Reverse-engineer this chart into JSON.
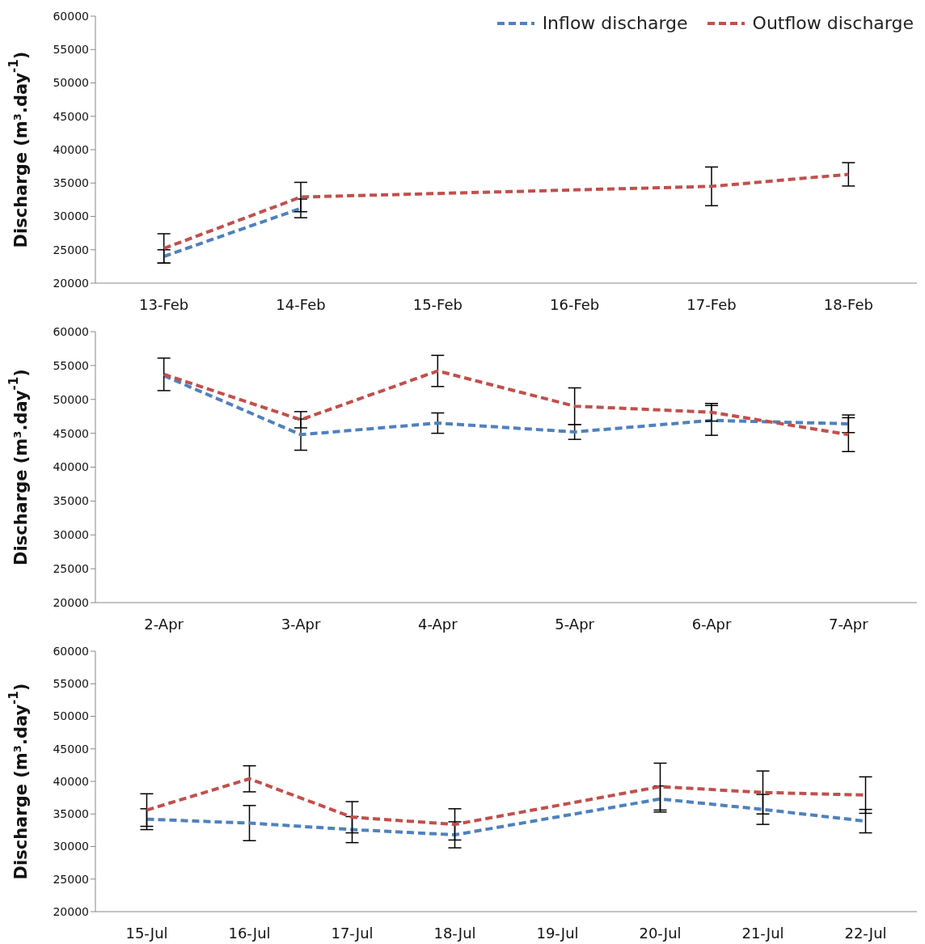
{
  "chart_data": [
    {
      "type": "line",
      "ylabel": "Discharge (m³.day$^{-1}$)",
      "categories": [
        "13-Feb",
        "14-Feb",
        "15-Feb",
        "16-Feb",
        "17-Feb",
        "18-Feb"
      ],
      "ylim": [
        20000,
        60000
      ],
      "yticks": [
        20000,
        25000,
        30000,
        35000,
        40000,
        45000,
        50000,
        55000,
        60000
      ],
      "grid": false,
      "legend": "top right",
      "marker": "none",
      "line_style": "dashed",
      "series": [
        {
          "name": "Inflow discharge",
          "color": "#4f81bd",
          "values": [
            24000,
            31200,
            null,
            null,
            null,
            null
          ],
          "errors": [
            1000,
            1400,
            null,
            null,
            null,
            null
          ]
        },
        {
          "name": "Outflow discharge",
          "color": "#c0504d",
          "values": [
            25200,
            32900,
            null,
            null,
            34500,
            36300
          ],
          "errors": [
            2200,
            2200,
            null,
            null,
            2900,
            1750
          ]
        }
      ]
    },
    {
      "type": "line",
      "ylabel": "Discharge (m³.day$^{-1}$)",
      "categories": [
        "2-Apr",
        "3-Apr",
        "4-Apr",
        "5-Apr",
        "6-Apr",
        "7-Apr"
      ],
      "ylim": [
        20000,
        60000
      ],
      "yticks": [
        20000,
        25000,
        30000,
        35000,
        40000,
        45000,
        50000,
        55000,
        60000
      ],
      "grid": false,
      "marker": "none",
      "line_style": "dashed",
      "series": [
        {
          "color": "#4f81bd",
          "values": [
            53500,
            44800,
            46500,
            45200,
            46900,
            46400
          ],
          "errors": [
            null,
            2300,
            1500,
            1100,
            2200,
            1300
          ]
        },
        {
          "color": "#c0504d",
          "values": [
            53700,
            47000,
            54200,
            49000,
            48100,
            44800
          ],
          "errors": [
            2400,
            1200,
            2300,
            2700,
            1300,
            2500
          ]
        }
      ]
    },
    {
      "type": "line",
      "ylabel": "Discharge (m³.day$^{-1}$)",
      "categories": [
        "15-Jul",
        "16-Jul",
        "17-Jul",
        "18-Jul",
        "19-Jul",
        "20-Jul",
        "21-Jul",
        "22-Jul"
      ],
      "ylim": [
        20000,
        60000
      ],
      "yticks": [
        20000,
        25000,
        30000,
        35000,
        40000,
        45000,
        50000,
        55000,
        60000
      ],
      "grid": false,
      "marker": "none",
      "line_style": "dashed",
      "series": [
        {
          "color": "#4f81bd",
          "values": [
            34200,
            33600,
            32600,
            31800,
            null,
            37300,
            35700,
            33900
          ],
          "errors": [
            1600,
            2700,
            2000,
            2000,
            null,
            2000,
            2300,
            1800
          ]
        },
        {
          "color": "#c0504d",
          "values": [
            35600,
            40400,
            34500,
            33400,
            null,
            39200,
            38300,
            37900
          ],
          "errors": [
            2500,
            2000,
            2400,
            2400,
            null,
            3600,
            3300,
            2800
          ]
        }
      ]
    }
  ]
}
